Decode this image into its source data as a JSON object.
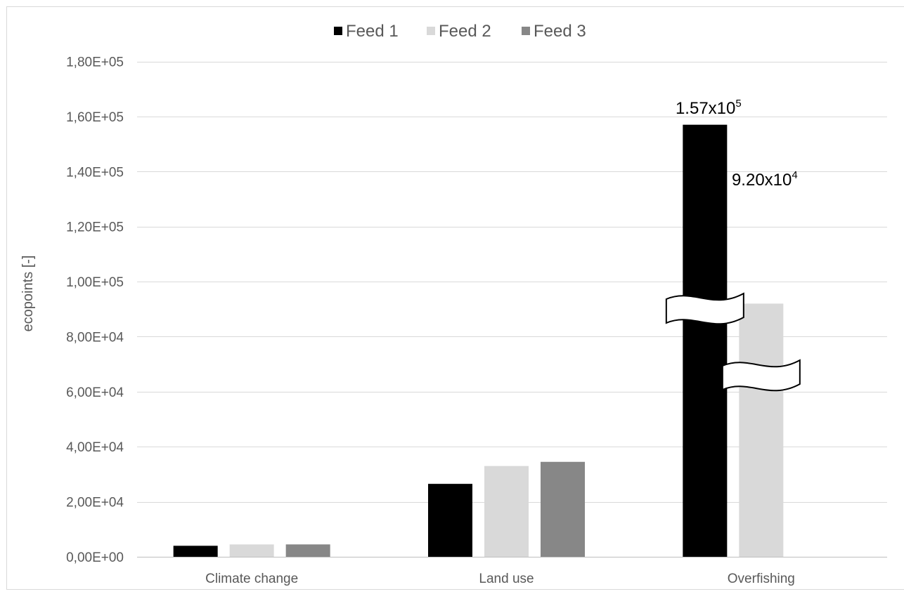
{
  "chart_data": {
    "type": "bar",
    "title": "",
    "xlabel": "",
    "ylabel": "ecopoints [-]",
    "ylim": [
      0,
      180000
    ],
    "yticks": [
      "0,00E+00",
      "2,00E+04",
      "4,00E+04",
      "6,00E+04",
      "8,00E+04",
      "1,00E+05",
      "1,20E+05",
      "1,40E+05",
      "1,60E+05",
      "1,80E+05"
    ],
    "y_break_shown": true,
    "categories": [
      "Climate change",
      "Land use",
      "Overfishing"
    ],
    "series": [
      {
        "name": "Feed 1",
        "color": "#000000",
        "values": [
          4000,
          26500,
          157000
        ]
      },
      {
        "name": "Feed 2",
        "color": "#d9d9d9",
        "values": [
          4500,
          33000,
          92000
        ]
      },
      {
        "name": "Feed 3",
        "color": "#878787",
        "values": [
          4500,
          34500,
          null
        ]
      }
    ],
    "annotations": [
      {
        "category": "Overfishing",
        "series": "Feed 1",
        "base": "1.57x10",
        "exp": "5"
      },
      {
        "category": "Overfishing",
        "series": "Feed 2",
        "base": "9.20x10",
        "exp": "4"
      }
    ],
    "legend_position": "top",
    "grid": true
  }
}
